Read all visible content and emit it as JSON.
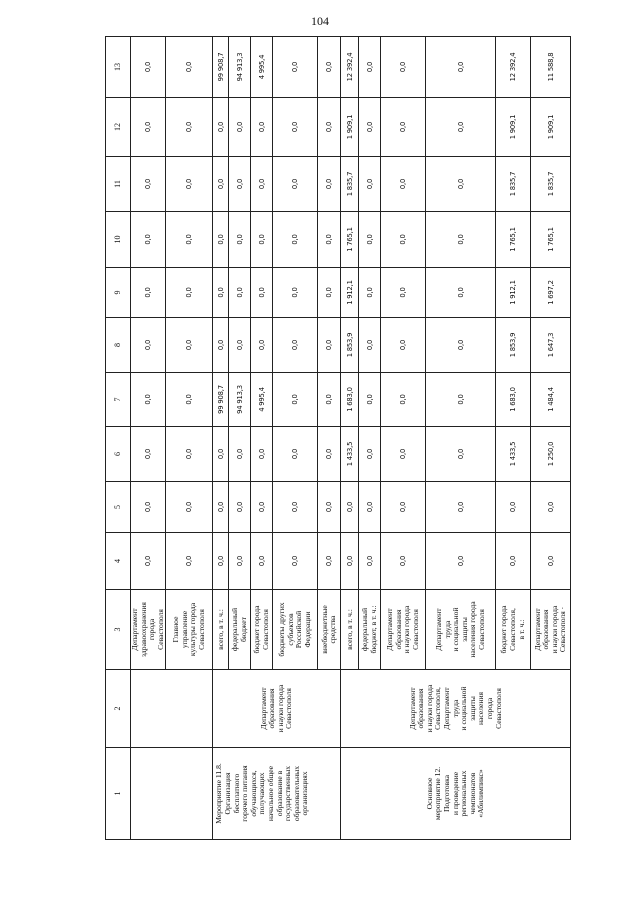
{
  "page_number": "104",
  "table": {
    "header": [
      "1",
      "2",
      "3",
      "4",
      "5",
      "6",
      "7",
      "8",
      "9",
      "10",
      "11",
      "12",
      "13"
    ],
    "groups": [
      {
        "col1": "",
        "col2": "",
        "rows": [
          {
            "label": "Департамент\nздравоохранения\nгорода\nСевастополя",
            "values": [
              "0,0",
              "0,0",
              "0,0",
              "0,0",
              "0,0",
              "0,0",
              "0,0",
              "0,0",
              "0,0",
              "0,0"
            ]
          },
          {
            "label": "Главное\nуправление\nкультуры города\nСевастополя",
            "values": [
              "0,0",
              "0,0",
              "0,0",
              "0,0",
              "0,0",
              "0,0",
              "0,0",
              "0,0",
              "0,0",
              "0,0"
            ]
          }
        ]
      },
      {
        "col1": "Мероприятие 11.8.\nОрганизация\nбесплатного\nгорячего питания\nобучающихся,\nполучающих\nначальное общее\nобразование в\nгосударственных\nобразовательных\nорганизациях",
        "col2": "Департамент\nобразования\nи науки города\nСевастополя",
        "rows": [
          {
            "label": "всего, в т. ч.:",
            "values": [
              "0,0",
              "0,0",
              "0,0",
              "99 908,7",
              "0,0",
              "0,0",
              "0,0",
              "0,0",
              "0,0",
              "99 908,7"
            ]
          },
          {
            "label": "федеральный\nбюджет",
            "values": [
              "0,0",
              "0,0",
              "0,0",
              "94 913,3",
              "0,0",
              "0,0",
              "0,0",
              "0,0",
              "0,0",
              "94 913,3"
            ]
          },
          {
            "label": "бюджет города\nСевастополя",
            "values": [
              "0,0",
              "0,0",
              "0,0",
              "4 995,4",
              "0,0",
              "0,0",
              "0,0",
              "0,0",
              "0,0",
              "4 995,4"
            ]
          },
          {
            "label": "бюджеты других\nсубъектов\nРоссийской\nФедерации",
            "values": [
              "0,0",
              "0,0",
              "0,0",
              "0,0",
              "0,0",
              "0,0",
              "0,0",
              "0,0",
              "0,0",
              "0,0"
            ]
          },
          {
            "label": "внебюджетные\nсредства",
            "values": [
              "0,0",
              "0,0",
              "0,0",
              "0,0",
              "0,0",
              "0,0",
              "0,0",
              "0,0",
              "0,0",
              "0,0"
            ]
          }
        ]
      },
      {
        "col1": "Основное\nмероприятие 12.\nПодготовка\nи проведение\nрегиональных\nчемпионатов\n«Абилимпикс»",
        "col2": "Департамент\nобразования\nи науки города\nСевастополя,\nДепартамент\nтруда\nи социальной\nзащиты\nнаселения\nгорода\nСевастополя",
        "rows": [
          {
            "label": "всего, в т. ч.:",
            "values": [
              "0,0",
              "0,0",
              "1 433,5",
              "1 683,0",
              "1 853,9",
              "1 912,1",
              "1 765,1",
              "1 835,7",
              "1 909,1",
              "12 392,4"
            ]
          },
          {
            "label": "федеральный\nбюджет, в т. ч.:",
            "values": [
              "0,0",
              "0,0",
              "0,0",
              "0,0",
              "0,0",
              "0,0",
              "0,0",
              "0,0",
              "0,0",
              "0,0"
            ]
          },
          {
            "label": "Департамент\nобразования\nи науки города\nСевастополя",
            "values": [
              "0,0",
              "0,0",
              "0,0",
              "0,0",
              "0,0",
              "0,0",
              "0,0",
              "0,0",
              "0,0",
              "0,0"
            ]
          },
          {
            "label": "Департамент\nтруда\nи социальной\nзащиты\nнаселения города\nСевастополя",
            "values": [
              "0,0",
              "0,0",
              "0,0",
              "0,0",
              "0,0",
              "0,0",
              "0,0",
              "0,0",
              "0,0",
              "0,0"
            ]
          },
          {
            "label": "бюджет города\nСевастополя,\nв т. ч.:",
            "values": [
              "0,0",
              "0,0",
              "1 433,5",
              "1 683,0",
              "1 853,9",
              "1 912,1",
              "1 765,1",
              "1 835,7",
              "1 909,1",
              "12 392,4"
            ]
          },
          {
            "label": "Департамент\nобразования\nи науки города\nСевастополя ·",
            "values": [
              "0,0",
              "0,0",
              "1 250,0",
              "1 484,4",
              "1 647,3",
              "1 697,2",
              "1 765,1",
              "1 835,7",
              "1 909,1",
              "11 588,8"
            ]
          }
        ]
      }
    ]
  }
}
